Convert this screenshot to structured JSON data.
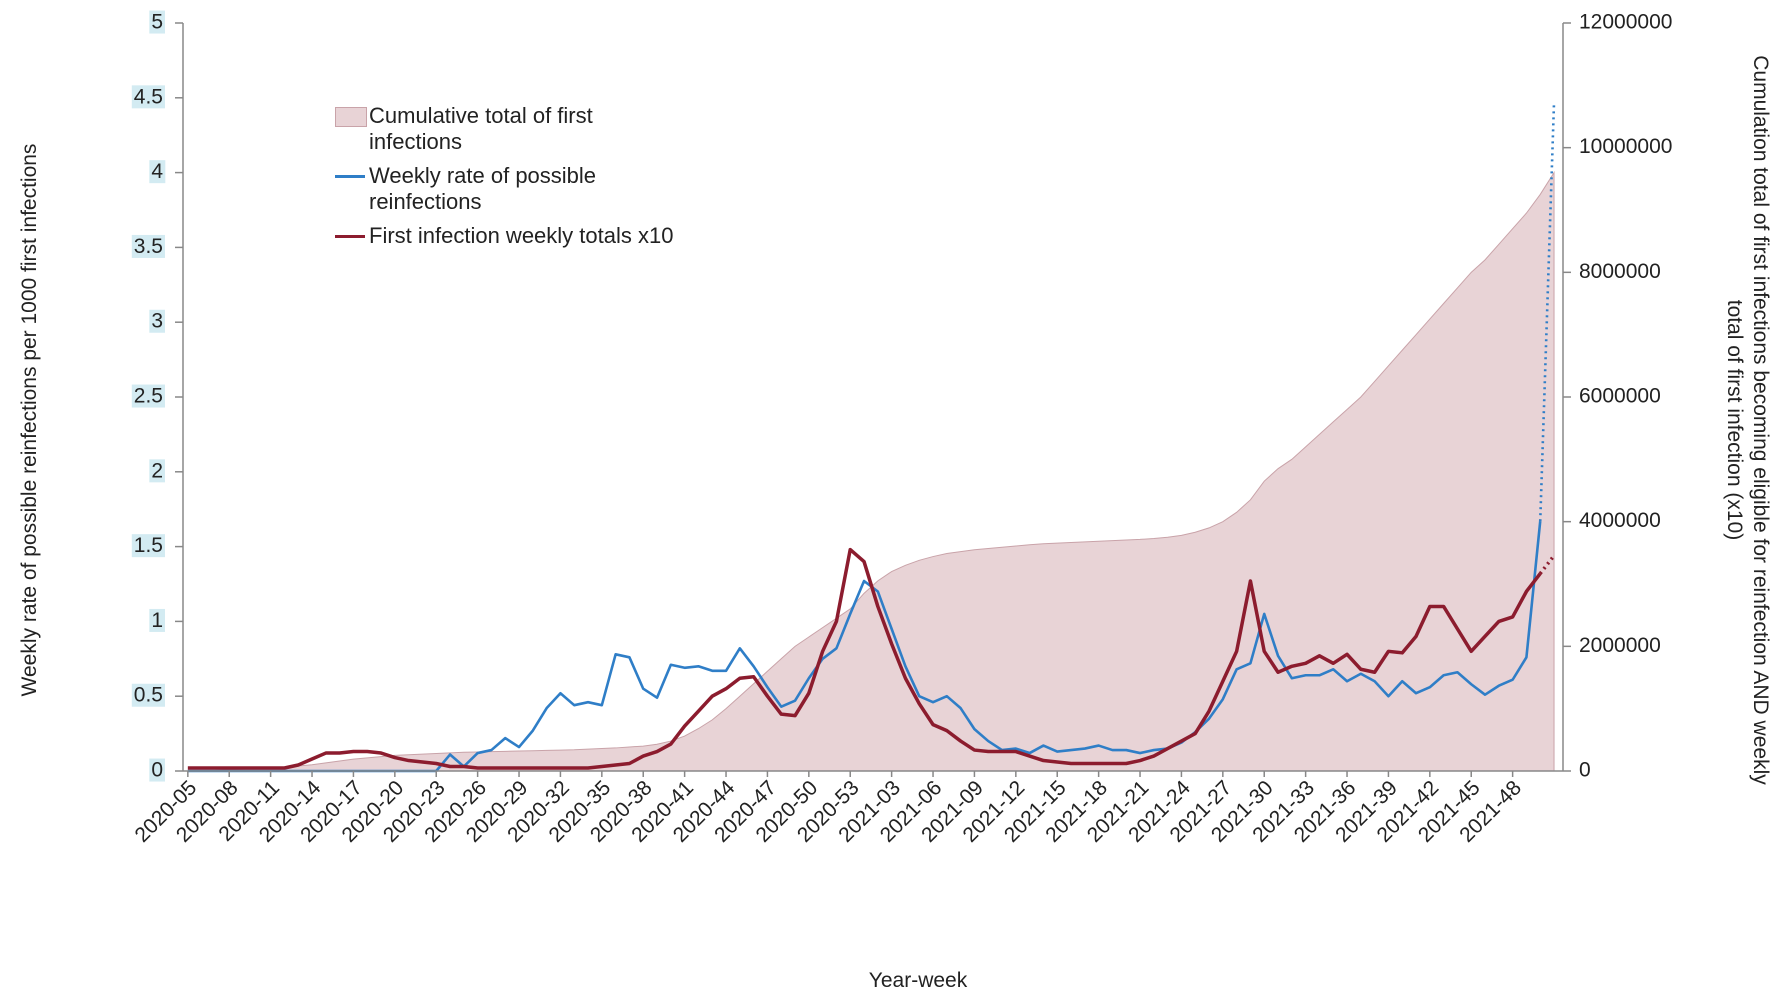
{
  "chart_data": {
    "type": "line",
    "x_label": "Year-week",
    "y_label": "Weekly rate of  possible  reinfections per 1000 first infections",
    "y2_label": "Cumulation total of first infections becoming eligible for reinfection AND weekly total of first infection (x10)",
    "legend": "upper left",
    "ylim": [
      0,
      5
    ],
    "yticks": [
      0,
      0.5,
      1,
      1.5,
      2,
      2.5,
      3,
      3.5,
      4,
      4.5,
      5
    ],
    "y2lim": [
      0,
      12000000
    ],
    "y2ticks": [
      0,
      2000000,
      4000000,
      6000000,
      8000000,
      10000000,
      12000000
    ],
    "categories": [
      "2020-05",
      null,
      null,
      "2020-08",
      null,
      null,
      "2020-11",
      null,
      null,
      "2020-14",
      null,
      null,
      "2020-17",
      null,
      null,
      "2020-20",
      null,
      null,
      "2020-23",
      null,
      null,
      "2020-26",
      null,
      null,
      "2020-29",
      null,
      null,
      "2020-32",
      null,
      null,
      "2020-35",
      null,
      null,
      "2020-38",
      null,
      null,
      "2020-41",
      null,
      null,
      "2020-44",
      null,
      null,
      "2020-47",
      null,
      null,
      "2020-50",
      null,
      null,
      "2020-53",
      null,
      null,
      "2021-03",
      null,
      null,
      "2021-06",
      null,
      null,
      "2021-09",
      null,
      null,
      "2021-12",
      null,
      null,
      "2021-15",
      null,
      null,
      "2021-18",
      null,
      null,
      "2021-21",
      null,
      null,
      "2021-24",
      null,
      null,
      "2021-27",
      null,
      null,
      "2021-30",
      null,
      null,
      "2021-33",
      null,
      null,
      "2021-36",
      null,
      null,
      "2021-39",
      null,
      null,
      "2021-42",
      null,
      null,
      "2021-45",
      null,
      null,
      "2021-48",
      null,
      null,
      null
    ],
    "series": [
      {
        "name": "Cumulative total of first infections",
        "type": "area",
        "axis": "y2",
        "color": "#e8d3d6",
        "values": [
          0,
          5000,
          10000,
          20000,
          30000,
          40000,
          50000,
          60000,
          80000,
          100000,
          130000,
          160000,
          190000,
          210000,
          230000,
          250000,
          260000,
          270000,
          280000,
          290000,
          300000,
          305000,
          310000,
          315000,
          320000,
          325000,
          330000,
          335000,
          340000,
          350000,
          360000,
          370000,
          385000,
          400000,
          430000,
          480000,
          560000,
          680000,
          820000,
          1000000,
          1200000,
          1400000,
          1600000,
          1800000,
          2000000,
          2150000,
          2300000,
          2450000,
          2600000,
          2850000,
          3050000,
          3200000,
          3300000,
          3380000,
          3440000,
          3490000,
          3520000,
          3550000,
          3570000,
          3590000,
          3610000,
          3630000,
          3645000,
          3655000,
          3665000,
          3675000,
          3685000,
          3695000,
          3705000,
          3715000,
          3730000,
          3750000,
          3780000,
          3830000,
          3900000,
          4000000,
          4150000,
          4350000,
          4650000,
          4850000,
          5000000,
          5200000,
          5400000,
          5600000,
          5800000,
          6000000,
          6250000,
          6500000,
          6750000,
          7000000,
          7250000,
          7500000,
          7750000,
          8000000,
          8200000,
          8450000,
          8700000,
          8950000,
          9250000,
          9600000
        ]
      },
      {
        "name": "Weekly rate of possible reinfections",
        "color": "#2f7ec7",
        "values": [
          0,
          0,
          0,
          0,
          0,
          0,
          0,
          0,
          0,
          0,
          0,
          0,
          0,
          0,
          0,
          0,
          0,
          0,
          0,
          0.11,
          0.03,
          0.12,
          0.14,
          0.22,
          0.16,
          0.27,
          0.42,
          0.52,
          0.44,
          0.46,
          0.44,
          0.78,
          0.76,
          0.55,
          0.49,
          0.71,
          0.69,
          0.7,
          0.67,
          0.67,
          0.82,
          0.7,
          0.56,
          0.43,
          0.47,
          0.62,
          0.75,
          0.82,
          1.05,
          1.27,
          1.2,
          0.95,
          0.7,
          0.5,
          0.46,
          0.5,
          0.42,
          0.28,
          0.2,
          0.14,
          0.15,
          0.12,
          0.17,
          0.13,
          0.14,
          0.15,
          0.17,
          0.14,
          0.14,
          0.12,
          0.14,
          0.15,
          0.19,
          0.26,
          0.35,
          0.48,
          0.68,
          0.72,
          1.05,
          0.77,
          0.62,
          0.64,
          0.64,
          0.68,
          0.6,
          0.65,
          0.6,
          0.5,
          0.6,
          0.52,
          0.56,
          0.64,
          0.66,
          0.58,
          0.51,
          0.57,
          0.61,
          0.76,
          1.67,
          null
        ],
        "dotted_values": [
          null,
          null,
          null,
          null,
          null,
          null,
          null,
          null,
          null,
          null,
          null,
          null,
          null,
          null,
          null,
          null,
          null,
          null,
          null,
          null,
          null,
          null,
          null,
          null,
          null,
          null,
          null,
          null,
          null,
          null,
          null,
          null,
          null,
          null,
          null,
          null,
          null,
          null,
          null,
          null,
          null,
          null,
          null,
          null,
          null,
          null,
          null,
          null,
          null,
          null,
          null,
          null,
          null,
          null,
          null,
          null,
          null,
          null,
          null,
          null,
          null,
          null,
          null,
          null,
          null,
          null,
          null,
          null,
          null,
          null,
          null,
          null,
          null,
          null,
          null,
          null,
          null,
          null,
          null,
          null,
          null,
          null,
          null,
          null,
          null,
          null,
          null,
          null,
          null,
          null,
          null,
          null,
          null,
          null,
          null,
          null,
          null,
          null,
          1.67,
          4.47
        ]
      },
      {
        "name": "First infection weekly totals x10",
        "axis": "y2",
        "color": "#8c1c2e",
        "values": [
          48000,
          48000,
          48000,
          48000,
          48000,
          48000,
          48000,
          48000,
          96000,
          192000,
          288000,
          288000,
          312000,
          312000,
          288000,
          216000,
          168000,
          144000,
          120000,
          72000,
          72000,
          48000,
          48000,
          48000,
          48000,
          48000,
          48000,
          48000,
          48000,
          48000,
          72000,
          96000,
          120000,
          240000,
          312000,
          432000,
          720000,
          960000,
          1200000,
          1320000,
          1488000,
          1512000,
          1200000,
          912000,
          888000,
          1248000,
          1920000,
          2400000,
          3552000,
          3360000,
          2640000,
          2040000,
          1488000,
          1080000,
          744000,
          648000,
          480000,
          336000,
          312000,
          312000,
          312000,
          240000,
          168000,
          144000,
          120000,
          120000,
          120000,
          120000,
          120000,
          168000,
          240000,
          360000,
          480000,
          600000,
          960000,
          1440000,
          1920000,
          3048000,
          1920000,
          1584000,
          1680000,
          1728000,
          1848000,
          1728000,
          1872000,
          1632000,
          1584000,
          1920000,
          1896000,
          2160000,
          2640000,
          2640000,
          2280000,
          1920000,
          2160000,
          2400000,
          2472000,
          2880000,
          3168000,
          null
        ],
        "dotted_values": [
          null,
          null,
          null,
          null,
          null,
          null,
          null,
          null,
          null,
          null,
          null,
          null,
          null,
          null,
          null,
          null,
          null,
          null,
          null,
          null,
          null,
          null,
          null,
          null,
          null,
          null,
          null,
          null,
          null,
          null,
          null,
          null,
          null,
          null,
          null,
          null,
          null,
          null,
          null,
          null,
          null,
          null,
          null,
          null,
          null,
          null,
          null,
          null,
          null,
          null,
          null,
          null,
          null,
          null,
          null,
          null,
          null,
          null,
          null,
          null,
          null,
          null,
          null,
          null,
          null,
          null,
          null,
          null,
          null,
          null,
          null,
          null,
          null,
          null,
          null,
          null,
          null,
          null,
          null,
          null,
          null,
          null,
          null,
          null,
          null,
          null,
          null,
          null,
          null,
          null,
          null,
          null,
          null,
          null,
          null,
          null,
          null,
          null,
          3168000,
          3456000
        ]
      }
    ]
  }
}
